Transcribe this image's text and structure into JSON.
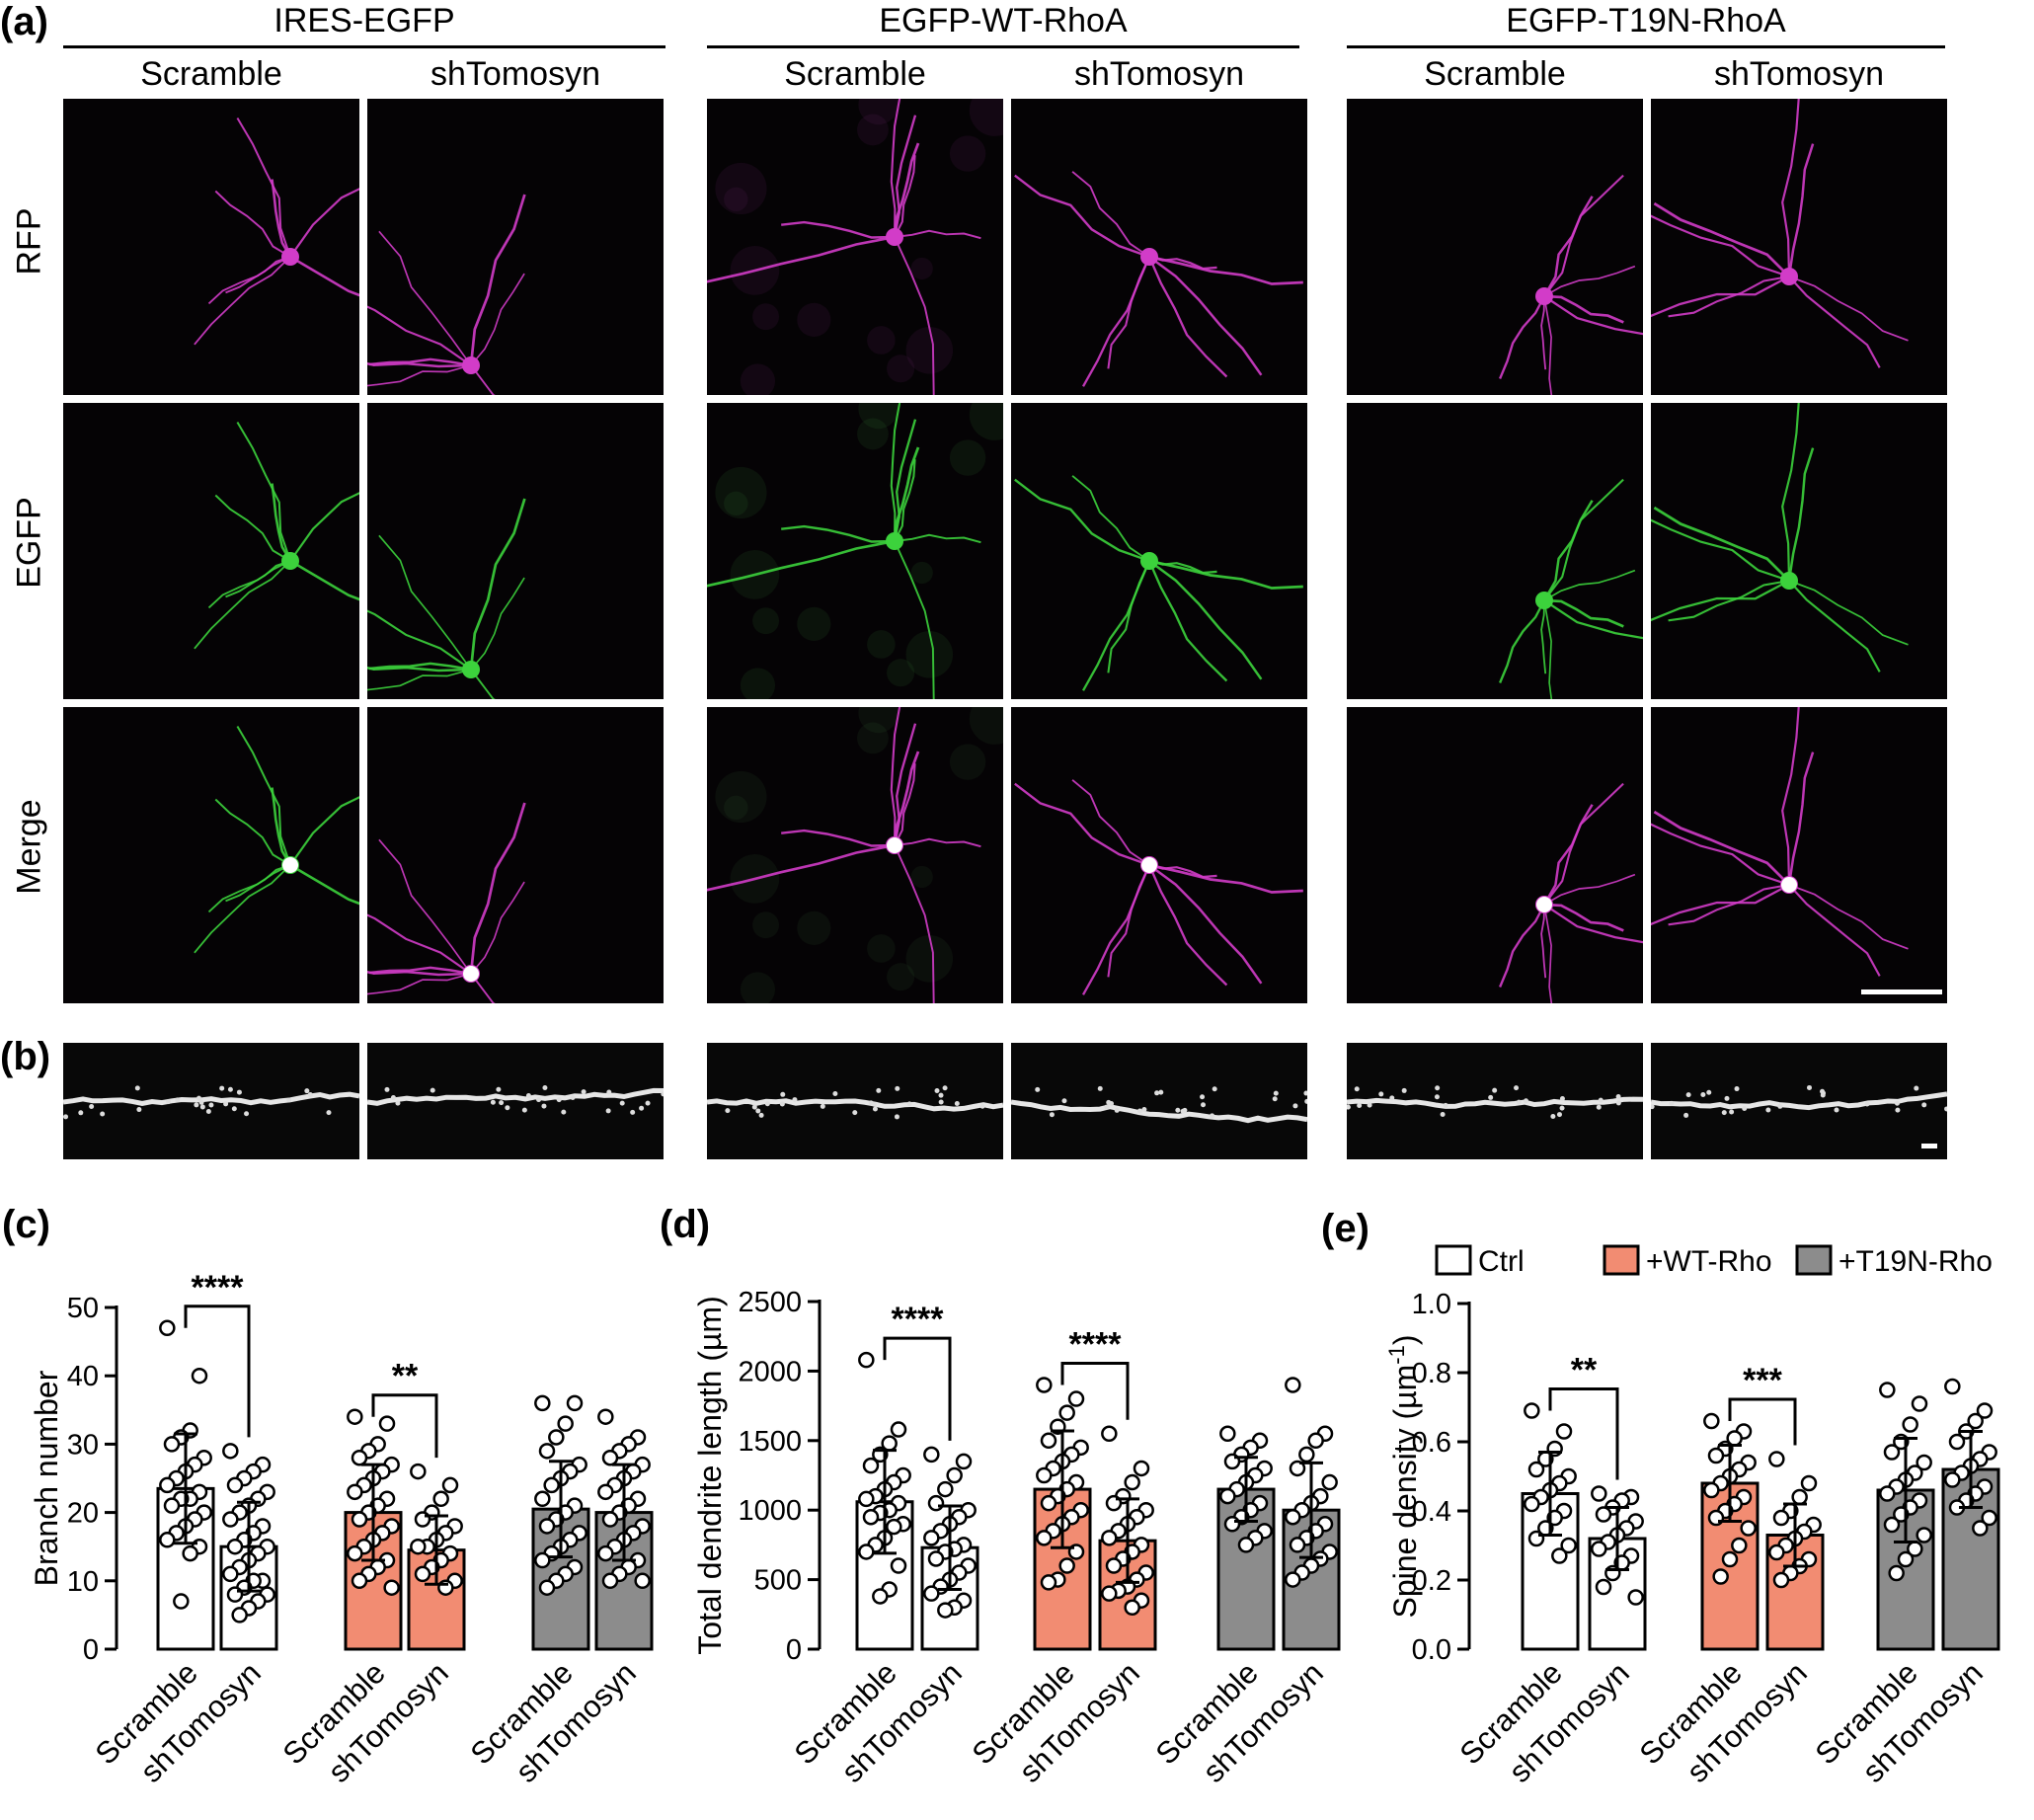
{
  "panels": {
    "a": "(a)",
    "b": "(b)",
    "c": "(c)",
    "d": "(d)",
    "e": "(e)"
  },
  "groups": [
    "IRES-EGFP",
    "EGFP-WT-RhoA",
    "EGFP-T19N-RhoA"
  ],
  "columns": [
    "Scramble",
    "shTomosyn"
  ],
  "rows": [
    "RFP",
    "EGFP",
    "Merge"
  ],
  "colors": {
    "ctrl": "#ffffff",
    "wt": "#f28c72",
    "t19n": "#8c8c8c",
    "rfp": "#d23cc8",
    "egfp": "#3cd23c",
    "merge": "#ffffff"
  },
  "chart_data": [
    {
      "type": "bar",
      "panel": "(c)",
      "ylabel": "Branch number",
      "ylim": [
        0,
        50
      ],
      "yticks": [
        0,
        10,
        20,
        30,
        40,
        50
      ],
      "categories": [
        "Scramble",
        "shTomosyn",
        "Scramble",
        "shTomosyn",
        "Scramble",
        "shTomosyn"
      ],
      "bar_groups": [
        "Ctrl",
        "Ctrl",
        "+WT-Rho",
        "+WT-Rho",
        "+T19N-Rho",
        "+T19N-Rho"
      ],
      "values": [
        23.5,
        15.0,
        20.0,
        14.5,
        20.5,
        20.0
      ],
      "sd": [
        8.0,
        6.5,
        7.0,
        5.0,
        7.0,
        7.0
      ],
      "points": [
        [
          47,
          40,
          32,
          31,
          30,
          28,
          27,
          26,
          25,
          24,
          23,
          22,
          22,
          21,
          20,
          19,
          18,
          17,
          16,
          15,
          14,
          7
        ],
        [
          29,
          27,
          26,
          25,
          24,
          23,
          22,
          21,
          20,
          19,
          18,
          17,
          16,
          15,
          15,
          14,
          13,
          12,
          11,
          10,
          10,
          9,
          8,
          8,
          7,
          6,
          5
        ],
        [
          34,
          33,
          30,
          29,
          28,
          27,
          26,
          25,
          24,
          23,
          22,
          21,
          20,
          19,
          18,
          17,
          16,
          15,
          14,
          13,
          12,
          11,
          10,
          9
        ],
        [
          26,
          24,
          22,
          20,
          19,
          18,
          17,
          16,
          15,
          15,
          14,
          13,
          12,
          11,
          10,
          9
        ],
        [
          36,
          36,
          33,
          31,
          29,
          27,
          26,
          25,
          24,
          22,
          21,
          20,
          19,
          18,
          17,
          16,
          15,
          14,
          13,
          12,
          11,
          10,
          9
        ],
        [
          34,
          31,
          30,
          29,
          28,
          27,
          26,
          25,
          24,
          23,
          22,
          21,
          20,
          19,
          18,
          17,
          16,
          15,
          14,
          13,
          12,
          11,
          10,
          10
        ]
      ],
      "significance": [
        {
          "pair": [
            0,
            1
          ],
          "label": "****"
        },
        {
          "pair": [
            2,
            3
          ],
          "label": "**"
        }
      ]
    },
    {
      "type": "bar",
      "panel": "(d)",
      "ylabel": "Total dendrite length (µm)",
      "ylim": [
        0,
        2500
      ],
      "yticks": [
        0,
        500,
        1000,
        1500,
        2000,
        2500
      ],
      "categories": [
        "Scramble",
        "shTomosyn",
        "Scramble",
        "shTomosyn",
        "Scramble",
        "shTomosyn"
      ],
      "bar_groups": [
        "Ctrl",
        "Ctrl",
        "+WT-Rho",
        "+WT-Rho",
        "+T19N-Rho",
        "+T19N-Rho"
      ],
      "values": [
        1060,
        730,
        1150,
        780,
        1150,
        1000
      ],
      "sd": [
        370,
        300,
        420,
        300,
        230,
        340
      ],
      "points": [
        [
          2080,
          1580,
          1480,
          1400,
          1320,
          1250,
          1200,
          1150,
          1100,
          1080,
          1050,
          1000,
          980,
          950,
          900,
          880,
          800,
          750,
          700,
          600,
          430,
          380
        ],
        [
          1400,
          1350,
          1250,
          1150,
          1050,
          1000,
          950,
          900,
          850,
          800,
          750,
          720,
          700,
          650,
          600,
          550,
          500,
          450,
          400,
          350,
          300,
          280
        ],
        [
          1900,
          1800,
          1700,
          1600,
          1500,
          1450,
          1400,
          1350,
          1300,
          1250,
          1200,
          1150,
          1100,
          1050,
          1000,
          950,
          900,
          850,
          800,
          700,
          600,
          500,
          480
        ],
        [
          1550,
          1300,
          1200,
          1100,
          1050,
          1000,
          950,
          900,
          850,
          800,
          750,
          700,
          650,
          600,
          550,
          500,
          450,
          420,
          400,
          350,
          300
        ],
        [
          1550,
          1500,
          1450,
          1400,
          1350,
          1300,
          1250,
          1200,
          1150,
          1100,
          1050,
          1000,
          950,
          900,
          850,
          800,
          750
        ],
        [
          1900,
          1550,
          1500,
          1400,
          1300,
          1200,
          1100,
          1050,
          1000,
          950,
          900,
          850,
          800,
          750,
          700,
          650,
          600,
          550,
          500
        ]
      ],
      "significance": [
        {
          "pair": [
            0,
            1
          ],
          "label": "****"
        },
        {
          "pair": [
            2,
            3
          ],
          "label": "****"
        }
      ]
    },
    {
      "type": "bar",
      "panel": "(e)",
      "ylabel": "Spine density (µm",
      "ylabel_sup": "-1",
      "ylabel_end": ")",
      "ylim": [
        0,
        1.0
      ],
      "yticks": [
        "0.0",
        "0.2",
        "0.4",
        "0.6",
        "0.8",
        "1.0"
      ],
      "categories": [
        "Scramble",
        "shTomosyn",
        "Scramble",
        "shTomosyn",
        "Scramble",
        "shTomosyn"
      ],
      "bar_groups": [
        "Ctrl",
        "Ctrl",
        "+WT-Rho",
        "+WT-Rho",
        "+T19N-Rho",
        "+T19N-Rho"
      ],
      "values": [
        0.45,
        0.32,
        0.48,
        0.33,
        0.46,
        0.52
      ],
      "sd": [
        0.12,
        0.09,
        0.11,
        0.09,
        0.15,
        0.11
      ],
      "points": [
        [
          0.69,
          0.63,
          0.58,
          0.55,
          0.52,
          0.5,
          0.48,
          0.46,
          0.44,
          0.42,
          0.4,
          0.38,
          0.35,
          0.32,
          0.3,
          0.27
        ],
        [
          0.45,
          0.44,
          0.43,
          0.41,
          0.39,
          0.37,
          0.35,
          0.33,
          0.31,
          0.29,
          0.27,
          0.25,
          0.22,
          0.18,
          0.15
        ],
        [
          0.66,
          0.63,
          0.61,
          0.58,
          0.56,
          0.54,
          0.52,
          0.5,
          0.48,
          0.46,
          0.44,
          0.42,
          0.4,
          0.38,
          0.35,
          0.3,
          0.26,
          0.21
        ],
        [
          0.55,
          0.48,
          0.44,
          0.4,
          0.38,
          0.36,
          0.34,
          0.32,
          0.3,
          0.28,
          0.26,
          0.24,
          0.22,
          0.2
        ],
        [
          0.75,
          0.71,
          0.65,
          0.6,
          0.57,
          0.54,
          0.51,
          0.49,
          0.47,
          0.45,
          0.43,
          0.41,
          0.39,
          0.36,
          0.33,
          0.29,
          0.26,
          0.22
        ],
        [
          0.76,
          0.69,
          0.66,
          0.63,
          0.6,
          0.57,
          0.55,
          0.53,
          0.51,
          0.49,
          0.47,
          0.45,
          0.43,
          0.41,
          0.38,
          0.35
        ]
      ],
      "significance": [
        {
          "pair": [
            0,
            1
          ],
          "label": "**"
        },
        {
          "pair": [
            2,
            3
          ],
          "label": "***"
        }
      ],
      "legend": {
        "position": "top",
        "entries": [
          "Ctrl",
          "+WT-Rho",
          "+T19N-Rho"
        ]
      }
    }
  ]
}
